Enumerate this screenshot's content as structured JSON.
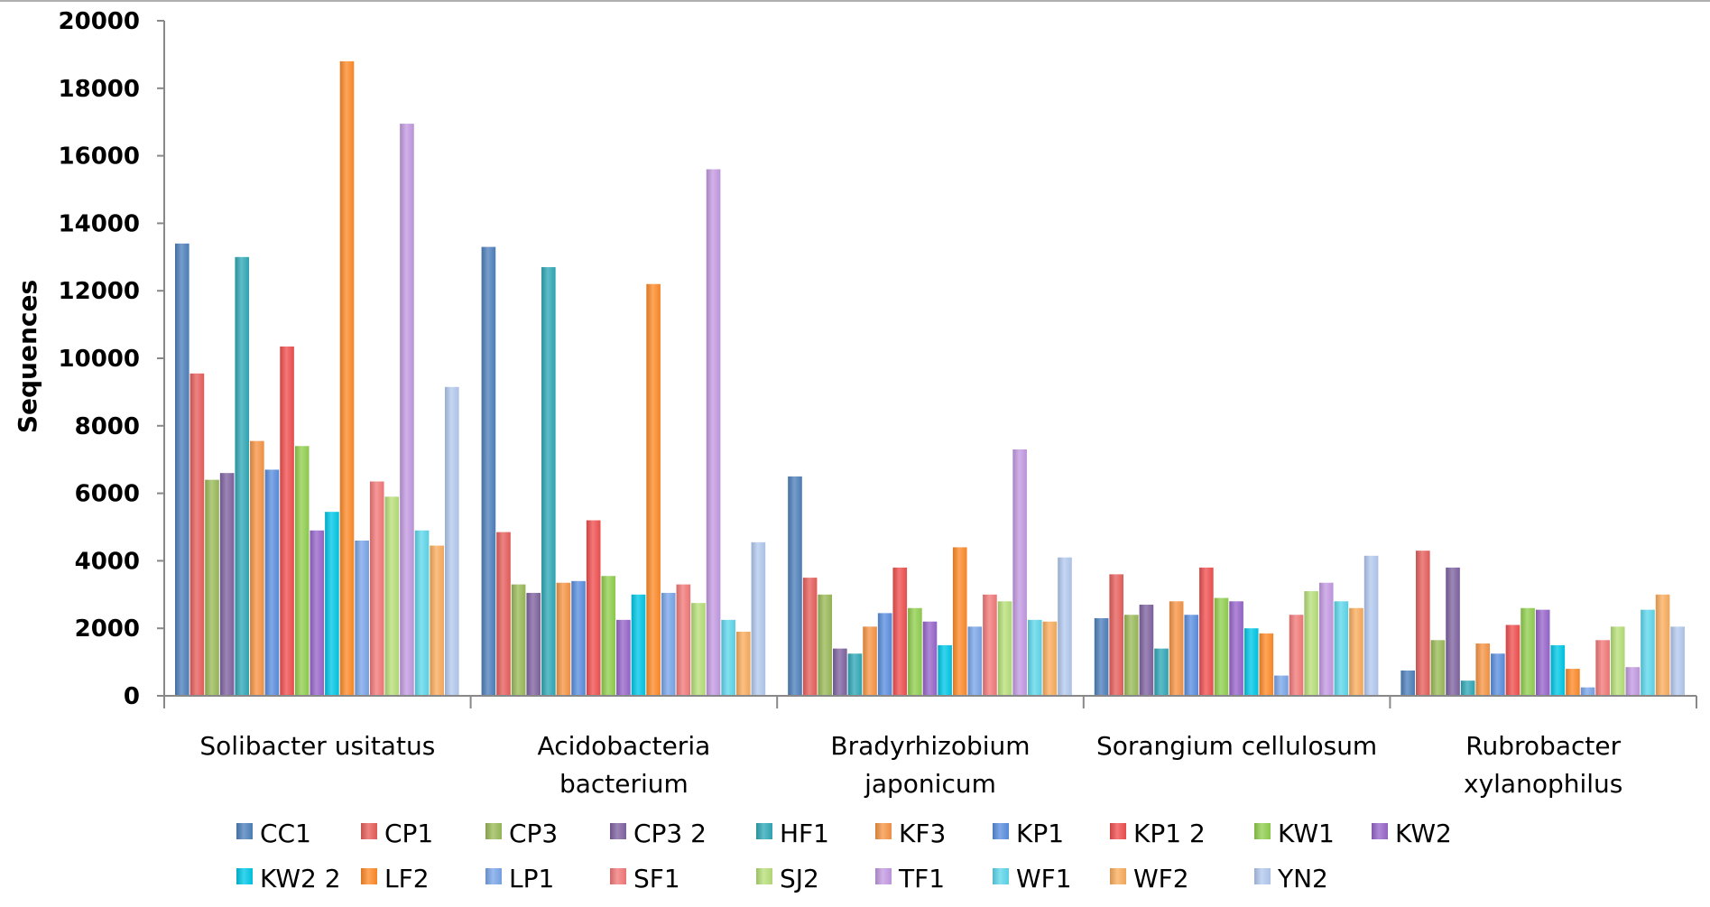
{
  "chart_data": {
    "type": "bar",
    "title": "",
    "xlabel": "",
    "ylabel": "Sequences",
    "ylim": [
      0,
      20000
    ],
    "yticks": [
      "0",
      "2000",
      "4000",
      "6000",
      "8000",
      "10000",
      "12000",
      "14000",
      "16000",
      "18000",
      "20000"
    ],
    "grid": false,
    "legend_position": "bottom",
    "categories": [
      [
        "Solibacter usitatus"
      ],
      [
        "Acidobacteria",
        "bacterium"
      ],
      [
        "Bradyrhizobium",
        "japonicum"
      ],
      [
        "Sorangium cellulosum"
      ],
      [
        "Rubrobacter",
        "xylanophilus"
      ]
    ],
    "series": [
      {
        "name": "CC1",
        "color": "#4f81bd",
        "values": [
          13400,
          13300,
          6500,
          2300,
          750
        ]
      },
      {
        "name": "CP1",
        "color": "#e8605d",
        "values": [
          9550,
          4850,
          3500,
          3600,
          4300
        ]
      },
      {
        "name": "CP3",
        "color": "#9bbb59",
        "values": [
          6400,
          3300,
          3000,
          2400,
          1650
        ]
      },
      {
        "name": "CP3 2",
        "color": "#8064a2",
        "values": [
          6600,
          3050,
          1400,
          2700,
          3800
        ]
      },
      {
        "name": "HF1",
        "color": "#31a9b8",
        "values": [
          13000,
          12700,
          1250,
          1400,
          450
        ]
      },
      {
        "name": "KF3",
        "color": "#f79646",
        "values": [
          7550,
          3350,
          2050,
          2800,
          1550
        ]
      },
      {
        "name": "KP1",
        "color": "#5b8fe0",
        "values": [
          6700,
          3400,
          2450,
          2400,
          1250
        ]
      },
      {
        "name": "KP1 2",
        "color": "#f15050",
        "values": [
          10350,
          5200,
          3800,
          3800,
          2100
        ]
      },
      {
        "name": "KW1",
        "color": "#92d050",
        "values": [
          7400,
          3550,
          2600,
          2900,
          2600
        ]
      },
      {
        "name": "KW2",
        "color": "#9966cc",
        "values": [
          4900,
          2250,
          2200,
          2800,
          2550
        ]
      },
      {
        "name": "KW2 2",
        "color": "#00c8e8",
        "values": [
          5450,
          3000,
          1500,
          2000,
          1500
        ]
      },
      {
        "name": "LF2",
        "color": "#ff8c2a",
        "values": [
          18800,
          12200,
          4400,
          1850,
          800
        ]
      },
      {
        "name": "LP1",
        "color": "#7aa6ea",
        "values": [
          4600,
          3050,
          2050,
          600,
          250
        ]
      },
      {
        "name": "SF1",
        "color": "#f47a7a",
        "values": [
          6350,
          3300,
          3000,
          2400,
          1650
        ]
      },
      {
        "name": "SJ2",
        "color": "#b8e07a",
        "values": [
          5900,
          2750,
          2800,
          3100,
          2050
        ]
      },
      {
        "name": "TF1",
        "color": "#c49be3",
        "values": [
          16950,
          15600,
          7300,
          3350,
          850
        ]
      },
      {
        "name": "WF1",
        "color": "#5fd8ec",
        "values": [
          4900,
          2250,
          2250,
          2800,
          2550
        ]
      },
      {
        "name": "WF2",
        "color": "#fbae5f",
        "values": [
          4450,
          1900,
          2200,
          2600,
          3000
        ]
      },
      {
        "name": "YN2",
        "color": "#b4caf0",
        "values": [
          9150,
          4550,
          4100,
          4150,
          2050
        ]
      }
    ]
  }
}
